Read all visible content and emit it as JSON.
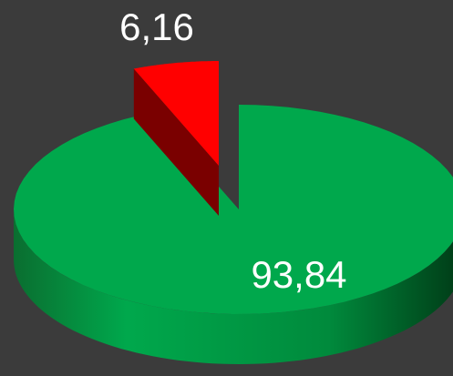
{
  "chart_data": {
    "type": "pie",
    "values": [
      93.84,
      6.16
    ],
    "value_labels": [
      "93,84",
      "6,16"
    ],
    "colors": [
      "#00a84c",
      "#ff0000"
    ],
    "exploded": [
      false,
      true
    ]
  }
}
